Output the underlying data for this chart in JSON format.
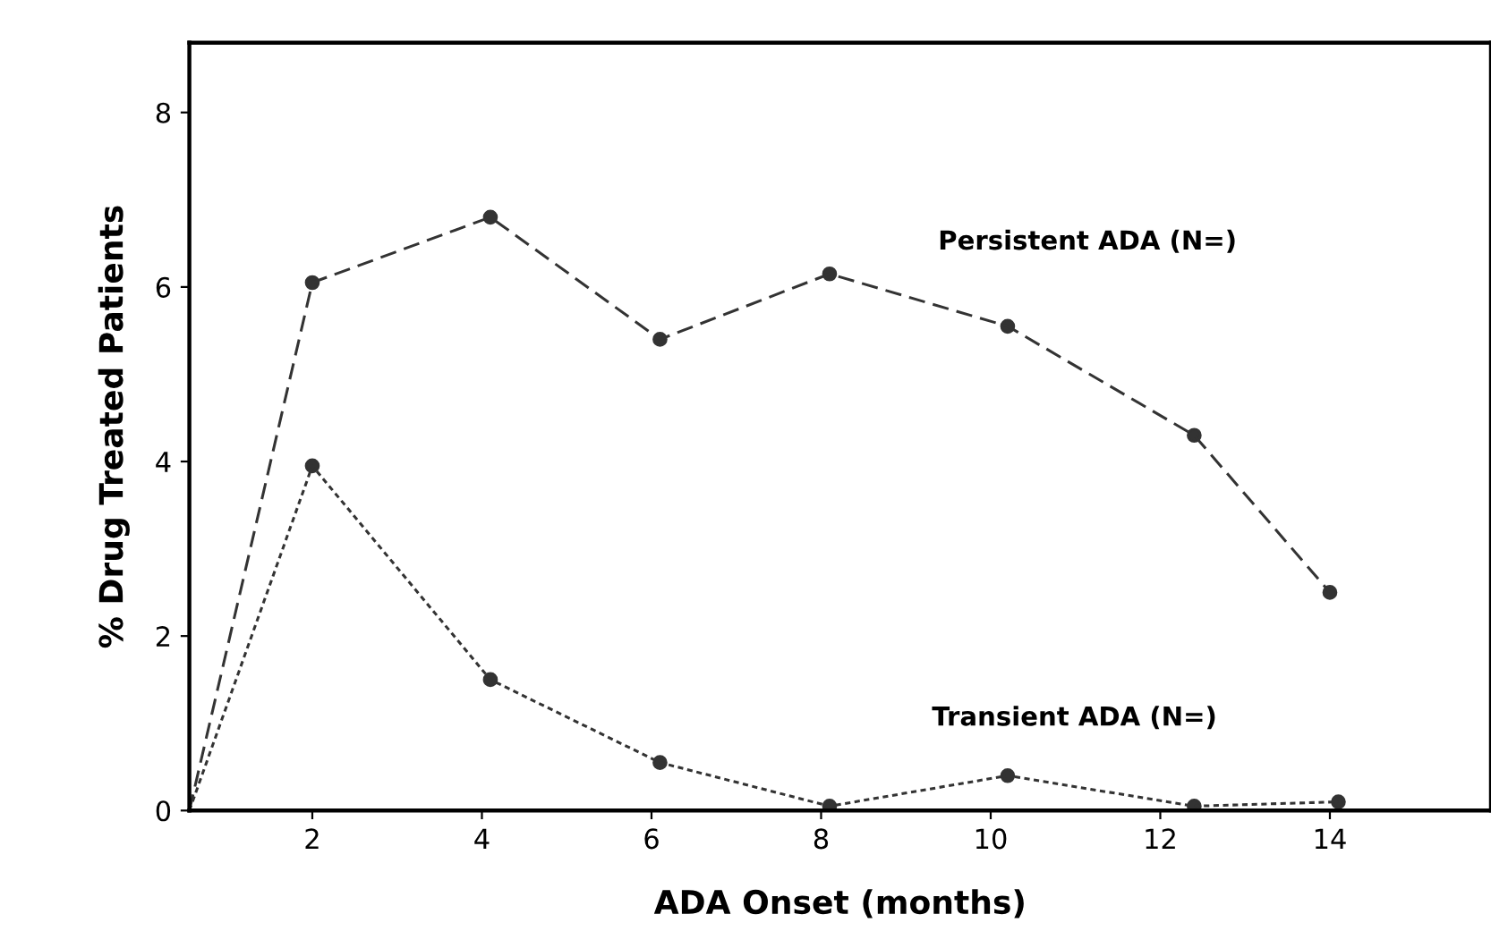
{
  "chart_data": {
    "type": "line",
    "xlabel": "ADA Onset (months)",
    "ylabel": "% Drug Treated Patients",
    "series": [
      {
        "color": "#333333",
        "line_style": "dashed",
        "x": [
          0.55,
          2,
          4.1,
          6.1,
          8.1,
          10.2,
          12.4,
          14.0
        ],
        "values": [
          0,
          6.05,
          6.8,
          5.4,
          6.15,
          5.55,
          4.3,
          2.5
        ]
      },
      {
        "color": "#333333",
        "line_style": "dotted",
        "x": [
          0.55,
          2,
          4.1,
          6.1,
          8.1,
          10.2,
          12.4,
          14.1
        ],
        "values": [
          0,
          3.95,
          1.5,
          0.55,
          0.05,
          0.4,
          0.05,
          0.1
        ]
      }
    ],
    "annotations": [
      "Persistent ADA (N=)",
      "Transient ADA (N=)"
    ],
    "marker": "circle",
    "grid": false,
    "legend": false,
    "xlim": [
      0.55,
      15.9
    ],
    "ylim": [
      0,
      8.8
    ],
    "xticks": [
      2,
      4,
      6,
      8,
      10,
      12,
      14
    ],
    "yticks": [
      0,
      2,
      4,
      6,
      8
    ]
  }
}
